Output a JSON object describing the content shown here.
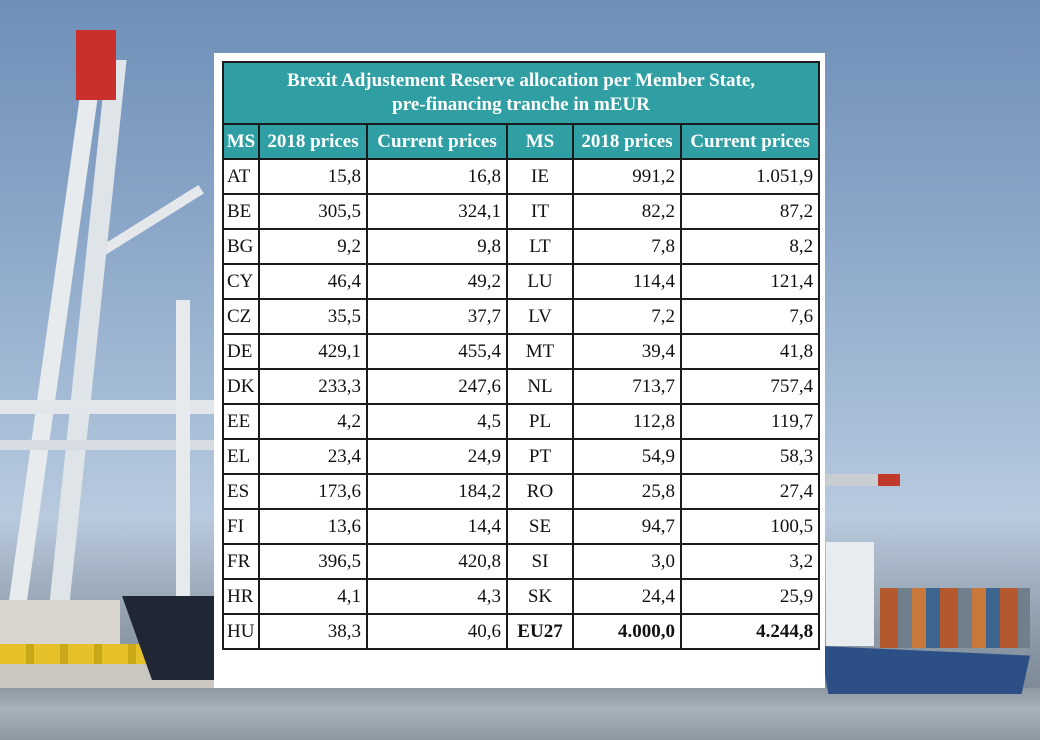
{
  "chart_data": {
    "type": "table",
    "title_line1": "Brexit Adjustement Reserve allocation per Member State,",
    "title_line2": "pre-financing tranche in mEUR",
    "columns": [
      "MS",
      "2018 prices",
      "Current prices",
      "MS",
      "2018 prices",
      "Current prices"
    ],
    "left_rows": [
      {
        "ms": "AT",
        "p2018": "15,8",
        "current": "16,8"
      },
      {
        "ms": "BE",
        "p2018": "305,5",
        "current": "324,1"
      },
      {
        "ms": "BG",
        "p2018": "9,2",
        "current": "9,8"
      },
      {
        "ms": "CY",
        "p2018": "46,4",
        "current": "49,2"
      },
      {
        "ms": "CZ",
        "p2018": "35,5",
        "current": "37,7"
      },
      {
        "ms": "DE",
        "p2018": "429,1",
        "current": "455,4"
      },
      {
        "ms": "DK",
        "p2018": "233,3",
        "current": "247,6"
      },
      {
        "ms": "EE",
        "p2018": "4,2",
        "current": "4,5"
      },
      {
        "ms": "EL",
        "p2018": "23,4",
        "current": "24,9"
      },
      {
        "ms": "ES",
        "p2018": "173,6",
        "current": "184,2"
      },
      {
        "ms": "FI",
        "p2018": "13,6",
        "current": "14,4"
      },
      {
        "ms": "FR",
        "p2018": "396,5",
        "current": "420,8"
      },
      {
        "ms": "HR",
        "p2018": "4,1",
        "current": "4,3"
      },
      {
        "ms": "HU",
        "p2018": "38,3",
        "current": "40,6"
      }
    ],
    "right_rows": [
      {
        "ms": "IE",
        "p2018": "991,2",
        "current": "1.051,9"
      },
      {
        "ms": "IT",
        "p2018": "82,2",
        "current": "87,2"
      },
      {
        "ms": "LT",
        "p2018": "7,8",
        "current": "8,2"
      },
      {
        "ms": "LU",
        "p2018": "114,4",
        "current": "121,4"
      },
      {
        "ms": "LV",
        "p2018": "7,2",
        "current": "7,6"
      },
      {
        "ms": "MT",
        "p2018": "39,4",
        "current": "41,8"
      },
      {
        "ms": "NL",
        "p2018": "713,7",
        "current": "757,4"
      },
      {
        "ms": "PL",
        "p2018": "112,8",
        "current": "119,7"
      },
      {
        "ms": "PT",
        "p2018": "54,9",
        "current": "58,3"
      },
      {
        "ms": "RO",
        "p2018": "25,8",
        "current": "27,4"
      },
      {
        "ms": "SE",
        "p2018": "94,7",
        "current": "100,5"
      },
      {
        "ms": "SI",
        "p2018": "3,0",
        "current": "3,2"
      },
      {
        "ms": "SK",
        "p2018": "24,4",
        "current": "25,9"
      },
      {
        "ms": "EU27",
        "p2018": "4.000,0",
        "current": "4.244,8"
      }
    ],
    "bold_last_right_row": true
  },
  "colors": {
    "header_bg": "#2f9fa3",
    "header_text": "#ffffff",
    "border": "#1b1b1b",
    "panel_bg": "#ffffff"
  }
}
